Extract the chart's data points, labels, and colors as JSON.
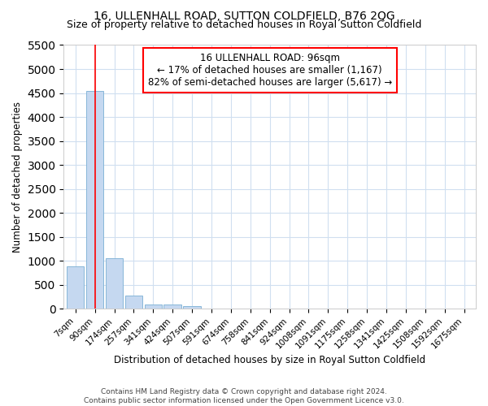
{
  "title": "16, ULLENHALL ROAD, SUTTON COLDFIELD, B76 2QG",
  "subtitle": "Size of property relative to detached houses in Royal Sutton Coldfield",
  "xlabel": "Distribution of detached houses by size in Royal Sutton Coldfield",
  "ylabel": "Number of detached properties",
  "footer_line1": "Contains HM Land Registry data © Crown copyright and database right 2024.",
  "footer_line2": "Contains public sector information licensed under the Open Government Licence v3.0.",
  "bar_labels": [
    "7sqm",
    "90sqm",
    "174sqm",
    "257sqm",
    "341sqm",
    "424sqm",
    "507sqm",
    "591sqm",
    "674sqm",
    "758sqm",
    "841sqm",
    "924sqm",
    "1008sqm",
    "1091sqm",
    "1175sqm",
    "1258sqm",
    "1341sqm",
    "1425sqm",
    "1508sqm",
    "1592sqm",
    "1675sqm"
  ],
  "bar_values": [
    880,
    4540,
    1050,
    275,
    90,
    80,
    55,
    0,
    0,
    0,
    0,
    0,
    0,
    0,
    0,
    0,
    0,
    0,
    0,
    0,
    0
  ],
  "bar_color": "#c5d8f0",
  "bar_edge_color": "#7aafd4",
  "property_line_x": 1.0,
  "annotation_text": "16 ULLENHALL ROAD: 96sqm\n← 17% of detached houses are smaller (1,167)\n82% of semi-detached houses are larger (5,617) →",
  "annotation_box_color": "white",
  "annotation_box_edge_color": "red",
  "property_line_color": "red",
  "ylim": [
    0,
    5500
  ],
  "yticks": [
    0,
    500,
    1000,
    1500,
    2000,
    2500,
    3000,
    3500,
    4000,
    4500,
    5000,
    5500
  ],
  "background_color": "#ffffff",
  "grid_color": "#d0dff0",
  "title_fontsize": 10,
  "subtitle_fontsize": 9,
  "xlabel_fontsize": 8.5,
  "ylabel_fontsize": 8.5,
  "tick_fontsize": 7.5,
  "footer_fontsize": 6.5,
  "annot_fontsize": 8.5
}
